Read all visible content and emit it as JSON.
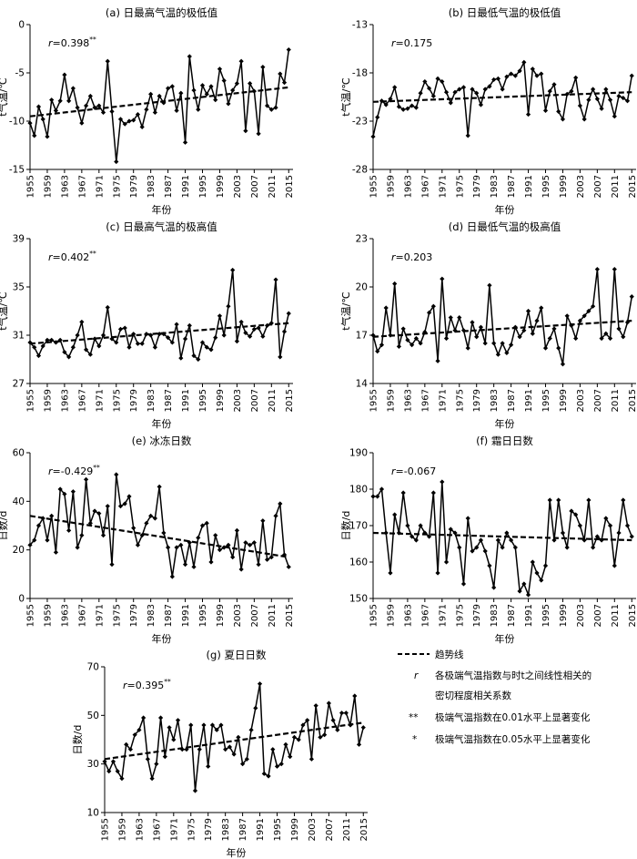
{
  "x_tick_labels": [
    "1955",
    "1959",
    "1963",
    "1967",
    "1971",
    "1975",
    "1979",
    "1983",
    "1987",
    "1991",
    "1995",
    "1999",
    "2003",
    "2007",
    "2011",
    "2015"
  ],
  "legend": {
    "trend_label": "趋势线",
    "r_symbol": "r",
    "r_desc_line1": "各极端气温指数与时t之间线性相关的",
    "r_desc_line2": "密切程度相关系数",
    "sig01_symbol": "**",
    "sig01_desc": "极端气温指数在0.01水平上显著变化",
    "sig05_symbol": "*",
    "sig05_desc": "极端气温指数在0.05水平上显著变化"
  },
  "chart_data": [
    {
      "id": "a",
      "type": "line",
      "title": "(a) 日最高气温的极低值",
      "xlabel": "年份",
      "ylabel": "t气温/℃",
      "r_prefix": "r",
      "r_value": "=0.398",
      "r_sig": "**",
      "ylim": [
        -15,
        0
      ],
      "yticks": [
        0,
        -5,
        -10,
        -15
      ],
      "xlim": [
        1955,
        2016
      ],
      "x_start": 1955,
      "values": [
        -10.2,
        -11.5,
        -8.5,
        -9.8,
        -11.6,
        -7.8,
        -8.9,
        -7.9,
        -5.2,
        -7.9,
        -6.6,
        -8.6,
        -10.2,
        -8.4,
        -7.4,
        -8.6,
        -8.4,
        -9.1,
        -3.8,
        -9.0,
        -14.2,
        -9.8,
        -10.3,
        -10.0,
        -9.9,
        -9.3,
        -10.6,
        -8.8,
        -7.2,
        -9.1,
        -7.4,
        -8.1,
        -6.6,
        -6.4,
        -8.9,
        -7.1,
        -12.2,
        -3.3,
        -6.8,
        -8.8,
        -6.3,
        -7.2,
        -6.4,
        -7.8,
        -4.6,
        -5.8,
        -8.2,
        -6.8,
        -6.1,
        -3.8,
        -11.0,
        -6.1,
        -6.9,
        -11.3,
        -4.4,
        -8.4,
        -8.8,
        -8.6,
        -5.1,
        -6.0,
        -2.6
      ],
      "trend": [
        -9.5,
        -6.5
      ],
      "series": [
        {
          "name": "趋势线"
        }
      ]
    },
    {
      "id": "b",
      "type": "line",
      "title": "(b) 日最低气温的极低值",
      "xlabel": "年份",
      "ylabel": "t气温/℃",
      "r_prefix": "r",
      "r_value": "=0.175",
      "r_sig": "",
      "ylim": [
        -28,
        -13
      ],
      "yticks": [
        -13,
        -18,
        -23,
        -28
      ],
      "xlim": [
        1955,
        2016
      ],
      "x_start": 1955,
      "values": [
        -24.6,
        -22.6,
        -20.9,
        -21.3,
        -20.7,
        -19.5,
        -21.5,
        -21.8,
        -21.7,
        -21.4,
        -21.6,
        -20.1,
        -18.9,
        -19.6,
        -20.4,
        -18.6,
        -18.9,
        -20.0,
        -21.1,
        -20.0,
        -19.7,
        -19.5,
        -24.5,
        -19.7,
        -20.1,
        -21.3,
        -19.7,
        -19.4,
        -18.7,
        -18.6,
        -19.7,
        -18.4,
        -18.1,
        -18.3,
        -17.8,
        -16.9,
        -22.3,
        -17.6,
        -18.3,
        -18.1,
        -21.9,
        -19.9,
        -19.2,
        -22.0,
        -22.8,
        -20.2,
        -19.9,
        -18.5,
        -21.4,
        -22.8,
        -20.8,
        -19.7,
        -20.7,
        -21.7,
        -19.7,
        -20.8,
        -22.5,
        -20.4,
        -20.6,
        -20.9,
        -18.3
      ],
      "trend": [
        -21.0,
        -20.0
      ],
      "series": [
        {
          "name": "趋势线"
        }
      ]
    },
    {
      "id": "c",
      "type": "line",
      "title": "(c) 日最高气温的极高值",
      "xlabel": "年份",
      "ylabel": "t气温/℃",
      "r_prefix": "r",
      "r_value": "=0.402",
      "r_sig": "**",
      "ylim": [
        27,
        39
      ],
      "yticks": [
        39,
        35,
        31,
        27
      ],
      "xlim": [
        1955,
        2016
      ],
      "x_start": 1955,
      "values": [
        30.4,
        30.0,
        29.3,
        30.1,
        30.6,
        30.6,
        30.4,
        30.6,
        29.6,
        29.2,
        30.0,
        31.0,
        32.1,
        29.8,
        29.4,
        30.7,
        30.1,
        31.0,
        33.3,
        30.7,
        30.4,
        31.5,
        31.6,
        30.0,
        31.1,
        30.3,
        30.3,
        31.1,
        31.0,
        30.0,
        31.1,
        31.1,
        30.8,
        30.4,
        31.9,
        29.1,
        30.7,
        31.8,
        29.3,
        29.0,
        30.4,
        30.0,
        29.8,
        30.8,
        32.6,
        31.0,
        33.4,
        36.4,
        30.5,
        32.1,
        31.2,
        30.9,
        31.5,
        31.6,
        30.9,
        31.8,
        32.0,
        35.6,
        29.2,
        31.3,
        32.8
      ],
      "trend": [
        30.3,
        32.0
      ],
      "series": [
        {
          "name": "趋势线"
        }
      ]
    },
    {
      "id": "d",
      "type": "line",
      "title": "(d) 日最低气温的极高值",
      "xlabel": "年份",
      "ylabel": "t气温/℃",
      "r_prefix": "r",
      "r_value": "=0.203",
      "r_sig": "",
      "ylim": [
        14,
        23
      ],
      "yticks": [
        23,
        20,
        17,
        14
      ],
      "xlim": [
        1955,
        2016
      ],
      "x_start": 1955,
      "values": [
        17.0,
        16.0,
        16.4,
        18.7,
        17.0,
        20.2,
        16.3,
        17.4,
        16.7,
        16.4,
        16.8,
        16.5,
        17.2,
        18.4,
        18.8,
        15.4,
        20.5,
        16.8,
        18.1,
        17.3,
        18.1,
        17.3,
        16.2,
        17.8,
        16.9,
        17.5,
        16.5,
        20.1,
        16.5,
        15.8,
        16.5,
        15.9,
        16.4,
        17.5,
        16.9,
        17.3,
        18.5,
        17.1,
        17.9,
        18.7,
        16.2,
        16.8,
        17.4,
        16.2,
        15.2,
        18.2,
        17.6,
        16.8,
        17.9,
        18.2,
        18.5,
        18.8,
        21.1,
        16.8,
        17.1,
        16.8,
        21.1,
        17.4,
        16.9,
        17.8,
        19.4
      ],
      "trend": [
        16.9,
        17.9
      ],
      "series": [
        {
          "name": "趋势线"
        }
      ]
    },
    {
      "id": "e",
      "type": "line",
      "title": "(e) 冰冻日数",
      "xlabel": "年份",
      "ylabel": "日数/d",
      "r_prefix": "r",
      "r_value": "=-0.429",
      "r_sig": "**",
      "ylim": [
        0,
        60
      ],
      "yticks": [
        60,
        40,
        20,
        0
      ],
      "xlim": [
        1955,
        2016
      ],
      "x_start": 1955,
      "values": [
        22,
        24,
        30,
        33,
        24,
        34,
        19,
        45,
        43,
        28,
        44,
        21,
        26,
        49,
        31,
        36,
        35,
        26,
        38,
        14,
        51,
        38,
        39,
        42,
        29,
        22,
        26,
        31,
        34,
        33,
        46,
        27,
        21,
        9,
        21,
        22,
        14,
        23,
        13,
        25,
        30,
        31,
        15,
        26,
        20,
        21,
        22,
        17,
        28,
        12,
        23,
        22,
        23,
        14,
        32,
        16,
        17,
        34,
        39,
        18,
        13
      ],
      "trend": [
        34,
        17
      ],
      "series": [
        {
          "name": "趋势线"
        }
      ]
    },
    {
      "id": "f",
      "type": "line",
      "title": "(f) 霜日日数",
      "xlabel": "年份",
      "ylabel": "日数/d",
      "r_prefix": "r",
      "r_value": "=-0.067",
      "r_sig": "",
      "ylim": [
        150,
        190
      ],
      "yticks": [
        190,
        180,
        170,
        160,
        150
      ],
      "xlim": [
        1955,
        2016
      ],
      "x_start": 1955,
      "values": [
        178,
        178,
        180,
        168,
        157,
        173,
        168,
        179,
        170,
        167,
        166,
        170,
        168,
        167,
        179,
        157,
        182,
        160,
        169,
        168,
        164,
        154,
        172,
        163,
        164,
        166,
        163,
        159,
        153,
        166,
        164,
        168,
        166,
        164,
        152,
        154,
        151,
        160,
        157,
        155,
        159,
        177,
        166,
        177,
        168,
        164,
        174,
        173,
        170,
        166,
        177,
        164,
        167,
        166,
        172,
        170,
        159,
        168,
        177,
        170,
        167
      ],
      "trend": [
        168,
        166
      ],
      "series": [
        {
          "name": "趋势线"
        }
      ]
    },
    {
      "id": "g",
      "type": "line",
      "title": "(g) 夏日日数",
      "xlabel": "年份",
      "ylabel": "日数/d",
      "r_prefix": "r",
      "r_value": "=0.395",
      "r_sig": "**",
      "ylim": [
        10,
        70
      ],
      "yticks": [
        70,
        50,
        30,
        10
      ],
      "xlim": [
        1955,
        2016
      ],
      "x_start": 1955,
      "values": [
        31,
        27,
        31,
        27,
        24,
        38,
        36,
        42,
        44,
        49,
        32,
        24,
        30,
        49,
        33,
        45,
        40,
        48,
        36,
        36,
        46,
        19,
        36,
        46,
        29,
        46,
        44,
        46,
        36,
        37,
        34,
        41,
        30,
        32,
        44,
        53,
        63,
        26,
        25,
        36,
        29,
        30,
        38,
        33,
        41,
        40,
        46,
        48,
        32,
        54,
        41,
        42,
        55,
        48,
        44,
        51,
        51,
        46,
        58,
        38,
        45
      ],
      "trend": [
        32,
        47
      ],
      "series": [
        {
          "name": "趋势线"
        }
      ]
    }
  ]
}
